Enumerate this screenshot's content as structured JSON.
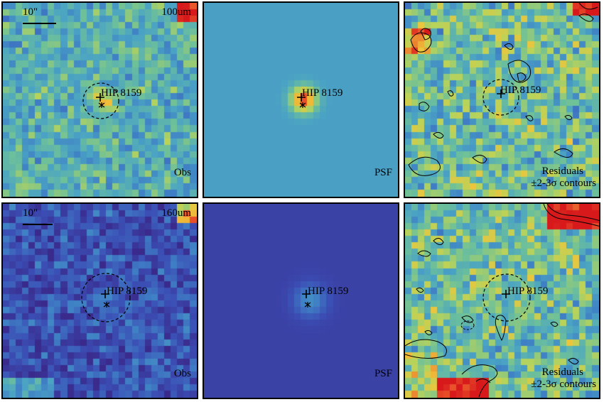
{
  "star_name": "HIP 8159",
  "scalebar_text": "10\"",
  "rows": [
    {
      "band": "100um",
      "obs_label": "Obs",
      "psf_label": "PSF",
      "residual_label_line1": "Residuals",
      "residual_label_line2": "±2-3σ contours"
    },
    {
      "band": "160um",
      "obs_label": "Obs",
      "psf_label": "PSF",
      "residual_label_line1": "Residuals",
      "residual_label_line2": "±2-3σ contours"
    }
  ],
  "colors": {
    "colormap": [
      "#3a2a8c",
      "#3b4fb5",
      "#3f7fc5",
      "#4aa3c4",
      "#6dc09a",
      "#b8d35a",
      "#f0c43a",
      "#e8502a",
      "#d7191c"
    ],
    "psf_background_top": "#4f8fc8",
    "psf_background_bottom": "#3d3b9a"
  }
}
